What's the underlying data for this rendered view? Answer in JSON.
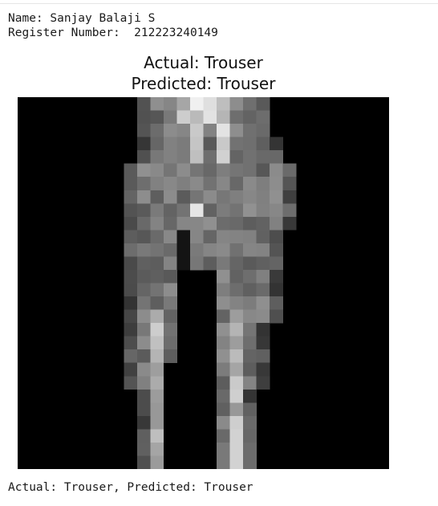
{
  "output": {
    "name_line": "Name: Sanjay Balaji S",
    "register_line": "Register Number:  212223240149",
    "caption": "Actual: Trouser, Predicted: Trouser"
  },
  "figure": {
    "title_actual": "Actual: Trouser",
    "title_predicted": "Predicted: Trouser",
    "image_label": "28x28 grayscale trouser image"
  }
}
